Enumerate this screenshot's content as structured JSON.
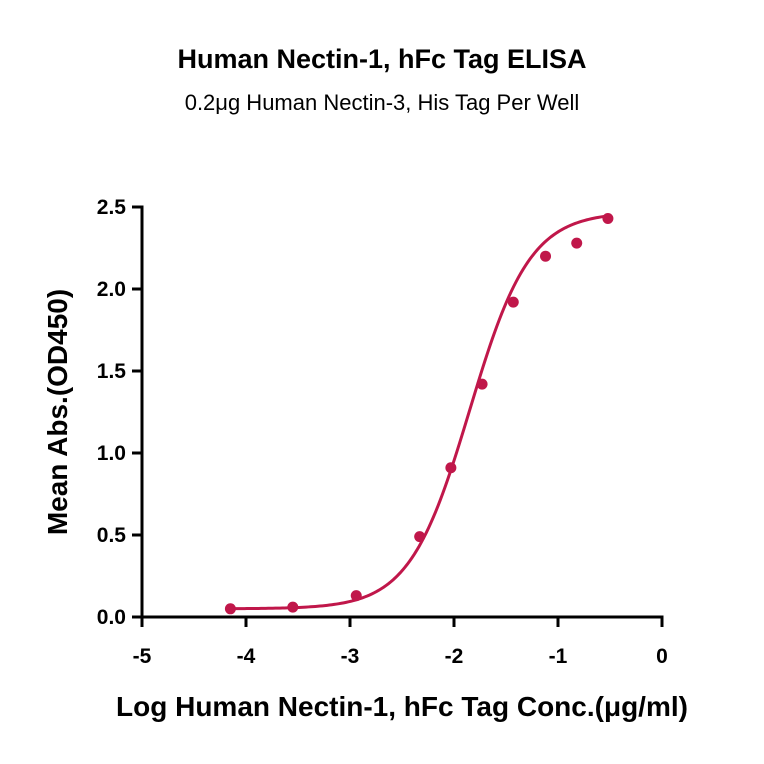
{
  "chart_data": {
    "type": "scatter",
    "title": "Human Nectin-1, hFc Tag ELISA",
    "subtitle": "0.2μg Human Nectin-3, His Tag Per Well",
    "xlabel": "Log Human Nectin-1, hFc Tag Conc.(μg/ml)",
    "ylabel": "Mean Abs.(OD450)",
    "xlim": [
      -5,
      0
    ],
    "ylim": [
      0,
      2.5
    ],
    "xticks": [
      -5,
      -4,
      -3,
      -2,
      -1,
      0
    ],
    "xtick_labels": [
      "-5",
      "-4",
      "-3",
      "-2",
      "-1",
      "0"
    ],
    "yticks": [
      0,
      0.5,
      1.0,
      1.5,
      2.0,
      2.5
    ],
    "ytick_labels": [
      "0.0",
      "0.5",
      "1.0",
      "1.5",
      "2.0",
      "2.5"
    ],
    "grid": false,
    "color": "#c0174a",
    "points": {
      "x": [
        -4.15,
        -3.55,
        -2.94,
        -2.33,
        -2.03,
        -1.73,
        -1.43,
        -1.12,
        -0.82,
        -0.52
      ],
      "y": [
        0.05,
        0.06,
        0.13,
        0.49,
        0.91,
        1.42,
        1.92,
        2.2,
        2.28,
        2.43
      ]
    },
    "fit": {
      "model": "4PL",
      "bottom": 0.05,
      "top": 2.47,
      "log_ec50": -1.85,
      "hill": 1.5
    }
  }
}
